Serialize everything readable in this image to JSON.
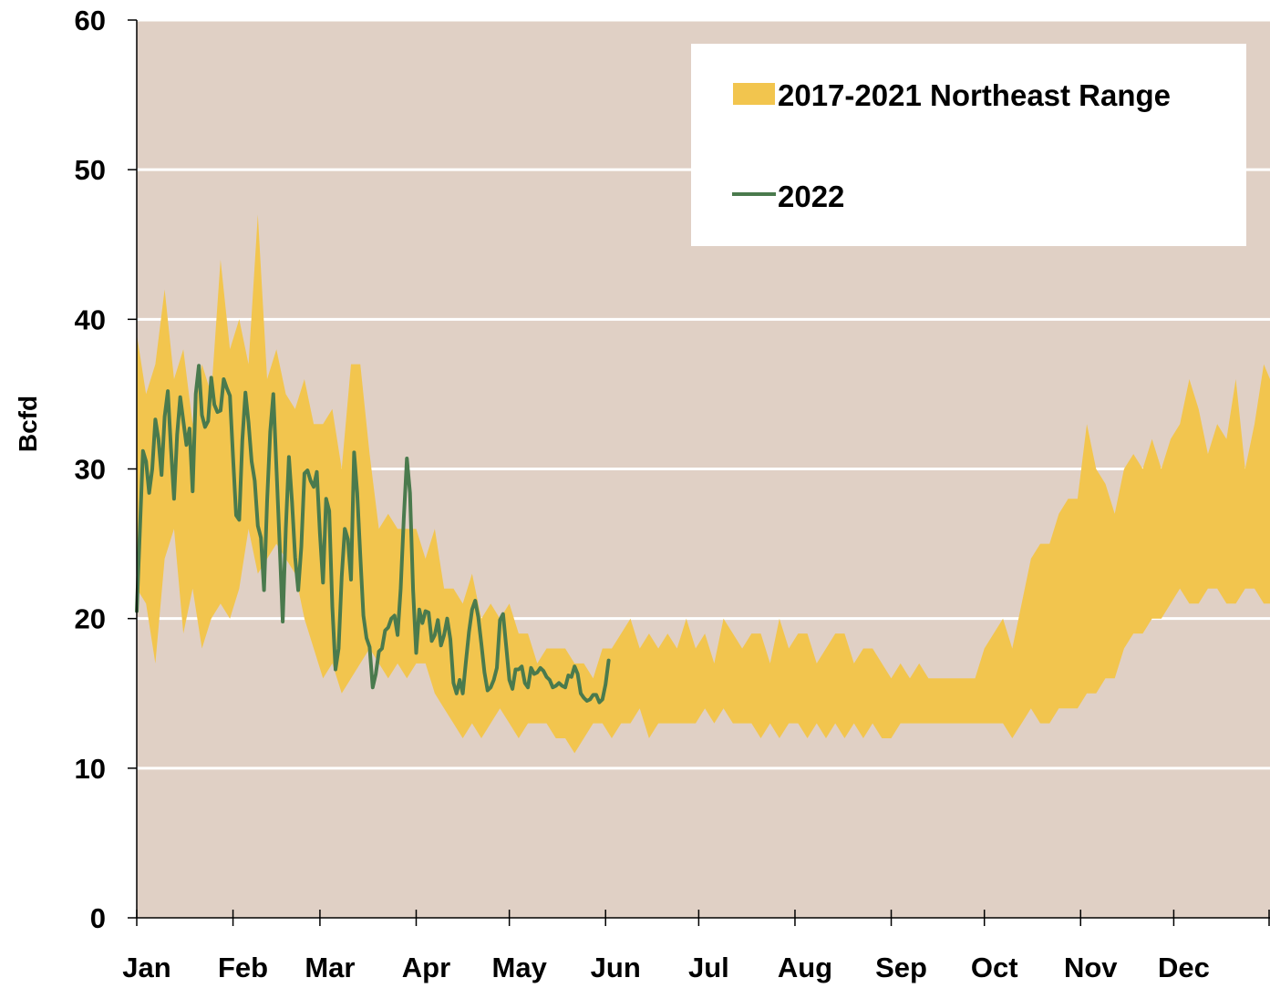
{
  "chart_data": {
    "type": "area",
    "title": "",
    "xlabel": "",
    "ylabel": "Bcfd",
    "ylim": [
      0,
      60
    ],
    "yticks": [
      0,
      10,
      20,
      30,
      40,
      50,
      60
    ],
    "xlim": [
      0,
      365
    ],
    "month_labels": [
      "Jan",
      "Feb",
      "Mar",
      "Apr",
      "May",
      "Jun",
      "Jul",
      "Aug",
      "Sep",
      "Oct",
      "Nov",
      "Dec"
    ],
    "grid": true,
    "legend_position": "top-right",
    "colors": {
      "plot_background": "#e0d0c5",
      "range_fill": "#f2c54e",
      "line_2022": "#4a7a4d",
      "gridline": "#ffffff",
      "legend_background": "#ffffff"
    },
    "series": [
      {
        "name": "2017-2021 Northeast Range",
        "kind": "band",
        "day": [
          0,
          3,
          6,
          9,
          12,
          15,
          18,
          21,
          24,
          27,
          30,
          33,
          36,
          39,
          42,
          45,
          48,
          51,
          54,
          57,
          60,
          63,
          66,
          69,
          72,
          75,
          78,
          81,
          84,
          87,
          90,
          93,
          96,
          99,
          102,
          105,
          108,
          111,
          114,
          117,
          120,
          123,
          126,
          129,
          132,
          135,
          138,
          141,
          144,
          147,
          150,
          153,
          156,
          159,
          162,
          165,
          168,
          171,
          174,
          177,
          180,
          183,
          186,
          189,
          192,
          195,
          198,
          201,
          204,
          207,
          210,
          213,
          216,
          219,
          222,
          225,
          228,
          231,
          234,
          237,
          240,
          243,
          246,
          249,
          252,
          255,
          258,
          261,
          264,
          267,
          270,
          273,
          276,
          279,
          282,
          285,
          288,
          291,
          294,
          297,
          300,
          303,
          306,
          309,
          312,
          315,
          318,
          321,
          324,
          327,
          330,
          333,
          336,
          339,
          342,
          345,
          348,
          351,
          354,
          357,
          360,
          363,
          365
        ],
        "low": [
          22,
          21,
          17,
          24,
          26,
          19,
          22,
          18,
          20,
          21,
          20,
          22,
          26,
          23,
          24,
          25,
          24,
          23,
          20,
          18,
          16,
          17,
          15,
          16,
          17,
          18,
          17,
          16,
          17,
          16,
          17,
          17,
          15,
          14,
          13,
          12,
          13,
          12,
          13,
          14,
          13,
          12,
          13,
          13,
          13,
          12,
          12,
          11,
          12,
          13,
          13,
          12,
          13,
          13,
          14,
          12,
          13,
          13,
          13,
          13,
          13,
          14,
          13,
          14,
          13,
          13,
          13,
          12,
          13,
          12,
          13,
          13,
          12,
          13,
          12,
          13,
          12,
          13,
          12,
          13,
          12,
          12,
          13,
          13,
          13,
          13,
          13,
          13,
          13,
          13,
          13,
          13,
          13,
          13,
          12,
          13,
          14,
          13,
          13,
          14,
          14,
          14,
          15,
          15,
          16,
          16,
          18,
          19,
          19,
          20,
          20,
          21,
          22,
          21,
          21,
          22,
          22,
          21,
          21,
          22,
          22,
          21,
          21
        ],
        "high": [
          39,
          35,
          37,
          42,
          36,
          38,
          33,
          37,
          35,
          44,
          38,
          40,
          37,
          47,
          36,
          38,
          35,
          34,
          36,
          33,
          33,
          34,
          30,
          37,
          37,
          31,
          26,
          27,
          26,
          26,
          26,
          24,
          26,
          22,
          22,
          21,
          23,
          20,
          21,
          20,
          21,
          19,
          19,
          17,
          18,
          18,
          18,
          17,
          17,
          16,
          18,
          18,
          19,
          20,
          18,
          19,
          18,
          19,
          18,
          20,
          18,
          19,
          17,
          20,
          19,
          18,
          19,
          19,
          17,
          20,
          18,
          19,
          19,
          17,
          18,
          19,
          19,
          17,
          18,
          18,
          17,
          16,
          17,
          16,
          17,
          16,
          16,
          16,
          16,
          16,
          16,
          18,
          19,
          20,
          18,
          21,
          24,
          25,
          25,
          27,
          28,
          28,
          33,
          30,
          29,
          27,
          30,
          31,
          30,
          32,
          30,
          32,
          33,
          36,
          34,
          31,
          33,
          32,
          36,
          30,
          33,
          37,
          36
        ]
      },
      {
        "name": "2022",
        "kind": "line",
        "day": [
          0,
          2,
          3,
          4,
          5,
          6,
          7,
          8,
          9,
          10,
          11,
          12,
          13,
          14,
          15,
          16,
          17,
          18,
          19,
          20,
          21,
          22,
          23,
          24,
          25,
          26,
          27,
          28,
          29,
          30,
          31,
          32,
          33,
          34,
          35,
          36,
          37,
          38,
          39,
          40,
          41,
          42,
          43,
          44,
          45,
          46,
          47,
          48,
          49,
          50,
          51,
          52,
          53,
          54,
          55,
          56,
          57,
          58,
          59,
          60,
          61,
          62,
          63,
          64,
          65,
          66,
          67,
          68,
          69,
          70,
          71,
          72,
          73,
          74,
          75,
          76,
          77,
          78,
          79,
          80,
          81,
          82,
          83,
          84,
          85,
          86,
          87,
          88,
          89,
          90,
          91,
          92,
          93,
          94,
          95,
          96,
          97,
          98,
          99,
          100,
          101,
          102,
          103,
          104,
          105,
          106,
          107,
          108,
          109,
          110,
          111,
          112,
          113,
          114,
          115,
          116,
          117,
          118,
          119,
          120,
          121,
          122,
          123,
          124,
          125,
          126,
          127,
          128,
          129,
          130,
          131,
          132,
          133,
          134,
          135,
          136,
          137,
          138,
          139,
          140,
          141,
          142,
          143,
          144,
          145,
          146,
          147,
          148,
          149,
          150,
          151,
          152
        ],
        "value": [
          20.5,
          31.2,
          30.5,
          28.4,
          30,
          33.3,
          32,
          29.6,
          33.5,
          35.2,
          31.4,
          28,
          32.3,
          34.8,
          33.2,
          31.6,
          32.7,
          28.5,
          35,
          36.9,
          33.6,
          32.8,
          33.2,
          36.1,
          34.3,
          33.8,
          33.9,
          36,
          35.4,
          34.9,
          30.8,
          26.9,
          26.6,
          31.9,
          35.1,
          33.1,
          30.5,
          29.2,
          26.2,
          25.4,
          21.9,
          27.9,
          32.5,
          35,
          30.1,
          25,
          19.8,
          26,
          30.8,
          27.8,
          24.1,
          21.9,
          24.8,
          29.7,
          29.9,
          29.2,
          28.8,
          29.8,
          25.7,
          22.4,
          28,
          27.2,
          20.8,
          16.6,
          18,
          22.8,
          26,
          25.3,
          22.6,
          31.1,
          28.4,
          24.2,
          20.2,
          18.7,
          18.1,
          15.4,
          16.3,
          17.8,
          18,
          19.2,
          19.4,
          20,
          20.2,
          18.9,
          22,
          26.7,
          30.7,
          28.4,
          21.9,
          17.7,
          20.6,
          19.7,
          20.5,
          20.4,
          18.5,
          18.9,
          19.9,
          18.2,
          18.9,
          20,
          18.6,
          15.7,
          15,
          15.9,
          15,
          17.1,
          19.1,
          20.6,
          21.2,
          20.1,
          18.3,
          16.4,
          15.2,
          15.4,
          15.9,
          16.7,
          19.9,
          20.3,
          18.1,
          15.9,
          15.3,
          16.6,
          16.6,
          16.8,
          15.7,
          15.4,
          16.7,
          16.3,
          16.4,
          16.7,
          16.5,
          16.1,
          15.9,
          15.4,
          15.5,
          15.7,
          15.5,
          15.4,
          16.2,
          16.1,
          16.8,
          16.3,
          15,
          14.7,
          14.5,
          14.6,
          14.9,
          14.9,
          14.4,
          14.6,
          15.6,
          17.2
        ]
      }
    ]
  }
}
